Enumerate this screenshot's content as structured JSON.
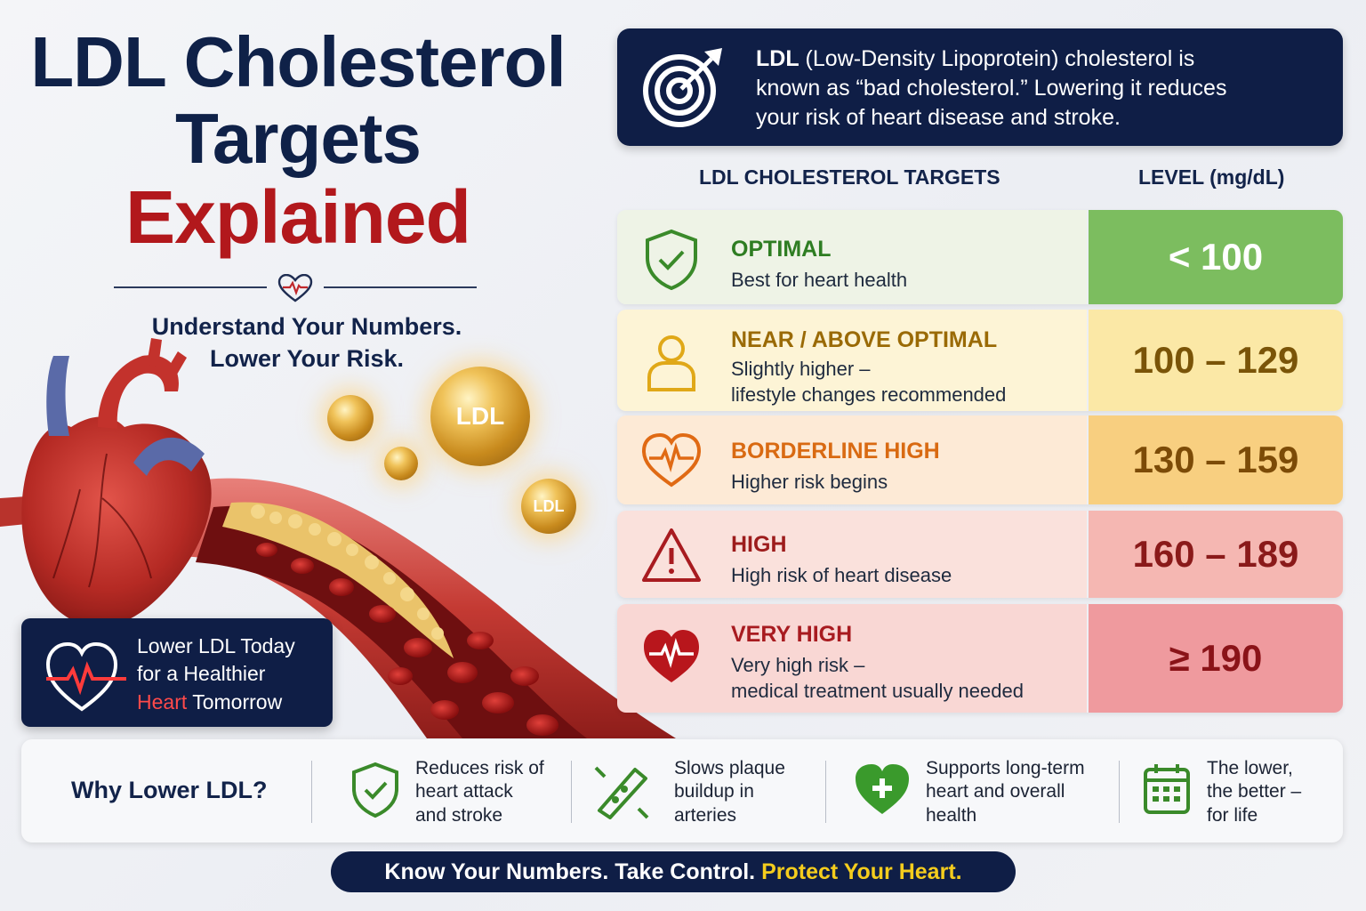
{
  "title": {
    "line1": "LDL Cholesterol",
    "line2": "Targets",
    "line3": "Explained"
  },
  "subtitle": {
    "line1": "Understand Your Numbers.",
    "line2": "Lower Your Risk."
  },
  "bubbles": {
    "large": "LDL",
    "small": "LDL"
  },
  "tagline": {
    "line1": "Lower LDL Today",
    "line2": "for a Healthier",
    "line3_red": "Heart",
    "line3_rest": " Tomorrow"
  },
  "info": {
    "bold": "LDL",
    "text1": " (Low-Density Lipoprotein) cholesterol is",
    "text2": "known as “bad cholesterol.” Lowering it reduces",
    "text3": "your risk of heart disease and stroke."
  },
  "table": {
    "header_category": "LDL CHOLESTEROL TARGETS",
    "header_level": "LEVEL (mg/dL)",
    "rows": [
      {
        "title": "OPTIMAL",
        "desc1": "Best for heart health",
        "desc2": "",
        "level": "< 100",
        "icon": "shield-check-icon",
        "color": "#7cbd5f"
      },
      {
        "title": "NEAR / ABOVE OPTIMAL",
        "desc1": "Slightly higher –",
        "desc2": "lifestyle changes recommended",
        "level": "100 – 129",
        "icon": "person-icon",
        "color": "#fbe8a6"
      },
      {
        "title": "BORDERLINE HIGH",
        "desc1": "Higher risk begins",
        "desc2": "",
        "level": "130 – 159",
        "icon": "heart-pulse-icon",
        "color": "#f8cf80"
      },
      {
        "title": "HIGH",
        "desc1": "High risk of heart disease",
        "desc2": "",
        "level": "160 – 189",
        "icon": "warning-icon",
        "color": "#f5b7b2"
      },
      {
        "title": "VERY HIGH",
        "desc1": "Very high risk –",
        "desc2": "medical treatment usually needed",
        "level": "≥ 190",
        "icon": "heart-filled-icon",
        "color": "#ef9a9e"
      }
    ]
  },
  "benefits": {
    "heading": "Why Lower LDL?",
    "items": [
      {
        "line1": "Reduces risk of",
        "line2": "heart attack",
        "line3": "and stroke",
        "icon": "shield-check-icon"
      },
      {
        "line1": "Slows plaque",
        "line2": "buildup in",
        "line3": "arteries",
        "icon": "artery-icon"
      },
      {
        "line1": "Supports long-term",
        "line2": "heart and overall",
        "line3": "health",
        "icon": "heart-plus-icon"
      },
      {
        "line1": "The lower,",
        "line2": "the better –",
        "line3": "for life",
        "icon": "calendar-icon"
      }
    ]
  },
  "banner": {
    "part1": "Know Your Numbers. Take Control. ",
    "part2": "Protect Your Heart."
  },
  "colors": {
    "navy": "#0f1e46",
    "red": "#b2181c",
    "green": "#4a9a2e",
    "gold": "#f5cd1d"
  }
}
